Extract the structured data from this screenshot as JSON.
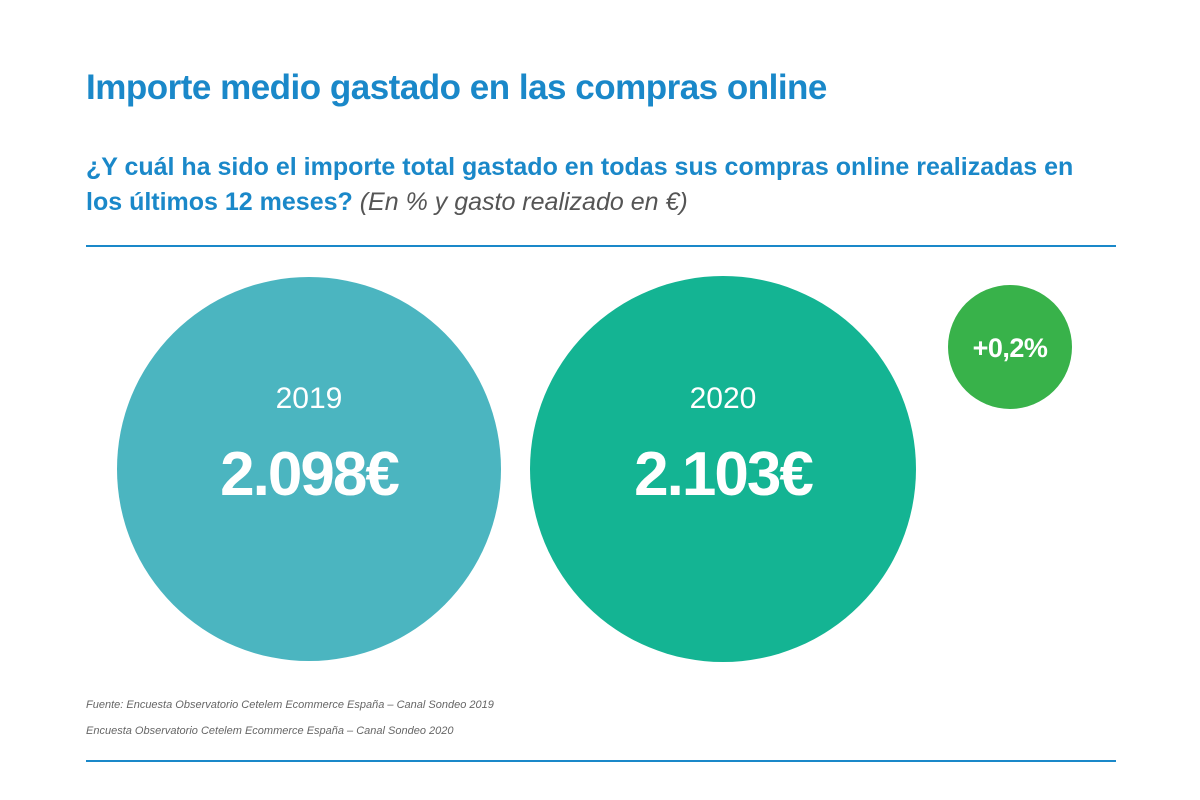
{
  "header": {
    "title": "Importe medio gastado en las compras online",
    "question": "¿Y cuál ha sido el importe total gastado en todas sus compras online realizadas en los últimos 12 meses?",
    "question_note": "(En % y gasto realizado en €)"
  },
  "chart_data": {
    "type": "bubble-comparison",
    "series": [
      {
        "name": "2019",
        "value": 2098,
        "label": "2.098€",
        "color": "#4bb5c0"
      },
      {
        "name": "2020",
        "value": 2103,
        "label": "2.103€",
        "color": "#14b493"
      }
    ],
    "unit": "€",
    "change": {
      "label": "+0,2%",
      "value": 0.2,
      "color": "#38b24a"
    }
  },
  "footer": {
    "source_line_1": "Fuente: Encuesta Observatorio Cetelem Ecommerce España – Canal Sondeo 2019",
    "source_line_2": "Encuesta Observatorio Cetelem Ecommerce España – Canal Sondeo 2020"
  },
  "colors": {
    "accent": "#1a88c9",
    "note": "#555555"
  }
}
